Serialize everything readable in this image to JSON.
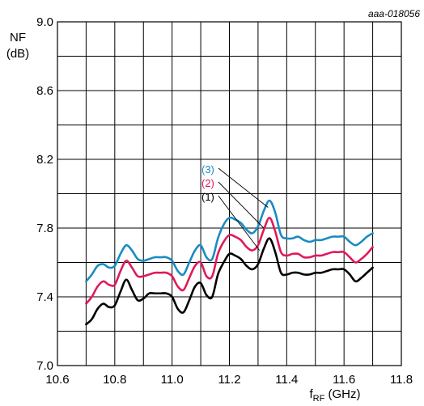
{
  "figure_id": "aaa-018056",
  "chart_data": {
    "type": "line",
    "title": "",
    "xlabel": {
      "main": "f",
      "sub": "RF",
      "unit": " (GHz)"
    },
    "ylabel": {
      "line1": "NF",
      "line2": "(dB)"
    },
    "xlim": [
      10.6,
      11.8
    ],
    "ylim": [
      7.0,
      9.0
    ],
    "x_ticks": [
      10.6,
      10.8,
      11.0,
      11.2,
      11.4,
      11.6,
      11.8
    ],
    "x_tick_labels": [
      "10.6",
      "10.8",
      "11.0",
      "11.2",
      "11.4",
      "11.6",
      "11.8"
    ],
    "y_ticks": [
      7.0,
      7.4,
      7.8,
      8.2,
      8.6,
      9.0
    ],
    "y_tick_labels": [
      "7.0",
      "7.4",
      "7.8",
      "8.2",
      "8.6",
      "9.0"
    ],
    "x_grid_step": 0.1,
    "y_grid_step": 0.2,
    "grid": true,
    "series": [
      {
        "name": "(1)",
        "color": "#000000",
        "x": [
          10.7,
          10.72,
          10.74,
          10.76,
          10.78,
          10.8,
          10.82,
          10.84,
          10.86,
          10.88,
          10.9,
          10.92,
          10.94,
          10.96,
          10.98,
          11.0,
          11.02,
          11.04,
          11.06,
          11.08,
          11.1,
          11.12,
          11.14,
          11.16,
          11.18,
          11.2,
          11.22,
          11.24,
          11.26,
          11.28,
          11.3,
          11.32,
          11.34,
          11.36,
          11.38,
          11.4,
          11.42,
          11.44,
          11.46,
          11.48,
          11.5,
          11.52,
          11.54,
          11.56,
          11.58,
          11.6,
          11.62,
          11.64,
          11.66,
          11.68,
          11.7
        ],
        "y": [
          7.24,
          7.27,
          7.33,
          7.36,
          7.34,
          7.35,
          7.43,
          7.5,
          7.44,
          7.38,
          7.39,
          7.42,
          7.42,
          7.42,
          7.42,
          7.4,
          7.33,
          7.31,
          7.38,
          7.46,
          7.48,
          7.41,
          7.4,
          7.53,
          7.6,
          7.65,
          7.64,
          7.62,
          7.58,
          7.56,
          7.59,
          7.68,
          7.74,
          7.66,
          7.54,
          7.53,
          7.54,
          7.54,
          7.53,
          7.53,
          7.54,
          7.54,
          7.55,
          7.56,
          7.56,
          7.56,
          7.53,
          7.49,
          7.51,
          7.54,
          7.57
        ]
      },
      {
        "name": "(2)",
        "color": "#e0195a",
        "x": [
          10.7,
          10.72,
          10.74,
          10.76,
          10.78,
          10.8,
          10.82,
          10.84,
          10.86,
          10.88,
          10.9,
          10.92,
          10.94,
          10.96,
          10.98,
          11.0,
          11.02,
          11.04,
          11.06,
          11.08,
          11.1,
          11.12,
          11.14,
          11.16,
          11.18,
          11.2,
          11.22,
          11.24,
          11.26,
          11.28,
          11.3,
          11.32,
          11.34,
          11.36,
          11.38,
          11.4,
          11.42,
          11.44,
          11.46,
          11.48,
          11.5,
          11.52,
          11.54,
          11.56,
          11.58,
          11.6,
          11.62,
          11.64,
          11.66,
          11.68,
          11.7
        ],
        "y": [
          7.36,
          7.4,
          7.46,
          7.49,
          7.47,
          7.47,
          7.55,
          7.61,
          7.57,
          7.52,
          7.52,
          7.53,
          7.54,
          7.54,
          7.54,
          7.52,
          7.46,
          7.44,
          7.51,
          7.58,
          7.6,
          7.52,
          7.52,
          7.65,
          7.72,
          7.76,
          7.75,
          7.73,
          7.69,
          7.67,
          7.7,
          7.79,
          7.86,
          7.78,
          7.66,
          7.64,
          7.65,
          7.65,
          7.63,
          7.63,
          7.64,
          7.64,
          7.65,
          7.66,
          7.66,
          7.66,
          7.63,
          7.6,
          7.62,
          7.65,
          7.69
        ]
      },
      {
        "name": "(3)",
        "color": "#1a8bc4",
        "x": [
          10.7,
          10.72,
          10.74,
          10.76,
          10.78,
          10.8,
          10.82,
          10.84,
          10.86,
          10.88,
          10.9,
          10.92,
          10.94,
          10.96,
          10.98,
          11.0,
          11.02,
          11.04,
          11.06,
          11.08,
          11.1,
          11.12,
          11.14,
          11.16,
          11.18,
          11.2,
          11.22,
          11.24,
          11.26,
          11.28,
          11.3,
          11.32,
          11.34,
          11.36,
          11.38,
          11.4,
          11.42,
          11.44,
          11.46,
          11.48,
          11.5,
          11.52,
          11.54,
          11.56,
          11.58,
          11.6,
          11.62,
          11.64,
          11.66,
          11.68,
          11.7
        ],
        "y": [
          7.49,
          7.53,
          7.58,
          7.59,
          7.57,
          7.58,
          7.65,
          7.7,
          7.67,
          7.62,
          7.61,
          7.62,
          7.63,
          7.63,
          7.63,
          7.61,
          7.55,
          7.53,
          7.6,
          7.67,
          7.7,
          7.63,
          7.62,
          7.74,
          7.82,
          7.86,
          7.85,
          7.83,
          7.79,
          7.77,
          7.81,
          7.9,
          7.96,
          7.89,
          7.76,
          7.74,
          7.74,
          7.75,
          7.73,
          7.72,
          7.73,
          7.73,
          7.74,
          7.75,
          7.75,
          7.75,
          7.72,
          7.7,
          7.72,
          7.75,
          7.77
        ]
      }
    ],
    "annotations": [
      {
        "text": "(3)",
        "series": "(3)",
        "label_at": [
          11.125,
          8.12
        ],
        "points_to": [
          11.335,
          7.92
        ]
      },
      {
        "text": "(2)",
        "series": "(2)",
        "label_at": [
          11.125,
          8.04
        ],
        "points_to": [
          11.32,
          7.8
        ]
      },
      {
        "text": "(1)",
        "series": "(1)",
        "label_at": [
          11.125,
          7.96
        ],
        "points_to": [
          11.305,
          7.67
        ]
      }
    ]
  }
}
